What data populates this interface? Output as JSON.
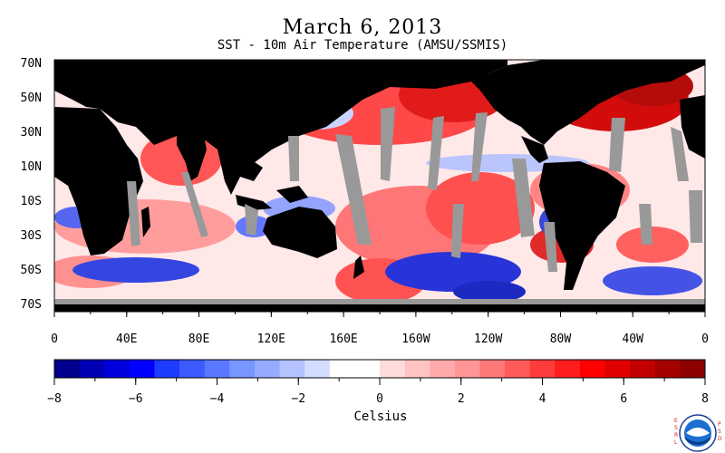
{
  "title": "March 6, 2013",
  "subtitle": "SST - 10m Air Temperature (AMSU/SSMIS)",
  "map": {
    "lat_labels": [
      "70N",
      "50N",
      "30N",
      "10N",
      "10S",
      "30S",
      "50S",
      "70S"
    ],
    "lon_labels": [
      "0",
      "40E",
      "80E",
      "120E",
      "160E",
      "160W",
      "120W",
      "80W",
      "40W",
      "0"
    ]
  },
  "colorbar": {
    "ticks": [
      "−8",
      "−6",
      "−4",
      "−2",
      "0",
      "2",
      "4",
      "6",
      "8"
    ],
    "unit": "Celsius",
    "colors": [
      "#00008c",
      "#0000b4",
      "#0000dc",
      "#0000ff",
      "#1e3cff",
      "#3c5aff",
      "#5a78ff",
      "#7896ff",
      "#96aaff",
      "#b4c3ff",
      "#d2dcff",
      "#ffffff",
      "#ffffff",
      "#ffdcdc",
      "#ffc3c3",
      "#ffaaaa",
      "#ff9696",
      "#ff7878",
      "#ff5a5a",
      "#ff3c3c",
      "#ff1e1e",
      "#ff0000",
      "#e10000",
      "#c30000",
      "#a50000",
      "#8c0000"
    ]
  },
  "logo": {
    "name": "noaa-logo",
    "left_text": "ESRL",
    "right_text": "PSD",
    "center_text": "NOAA"
  },
  "colors": {
    "land": "#000000",
    "missing": "#999999",
    "warm": "#e81010",
    "cool": "#2030d0"
  }
}
